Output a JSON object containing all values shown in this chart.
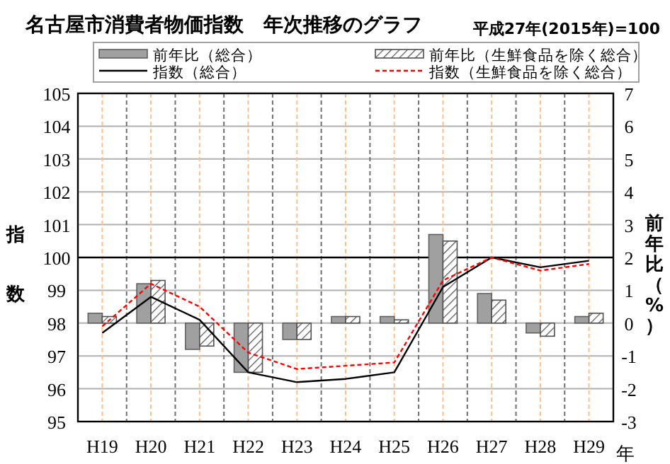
{
  "chart_data": {
    "type": "bar",
    "title": "名古屋市消費者物価指数　年次推移のグラフ",
    "subtitle": "平成27年(2015年)=100",
    "xlabel": "年",
    "ylabel": "指数",
    "y2label": "前年比（%）",
    "categories": [
      "H19",
      "H20",
      "H21",
      "H22",
      "H23",
      "H24",
      "H25",
      "H26",
      "H27",
      "H28",
      "H29"
    ],
    "series": [
      {
        "name": "前年比（総合）",
        "axis": "y2",
        "color": "#a0a0a0",
        "values": [
          0.3,
          1.2,
          -0.8,
          -1.5,
          -0.5,
          0.2,
          0.2,
          2.7,
          0.9,
          -0.3,
          0.2
        ]
      },
      {
        "name": "前年比（生鮮食品を除く総合）",
        "axis": "y2",
        "color": "#505050",
        "values": [
          0.2,
          1.3,
          -0.7,
          -1.5,
          -0.5,
          0.2,
          0.1,
          2.5,
          0.7,
          -0.4,
          0.3
        ]
      },
      {
        "name": "指数（総合）",
        "type": "line",
        "axis": "y",
        "color": "#000000",
        "line_style": "solid",
        "values": [
          97.7,
          98.8,
          98.1,
          96.5,
          96.2,
          96.3,
          96.5,
          99.1,
          100.0,
          99.7,
          99.9
        ]
      },
      {
        "name": "指数（生鮮食品を除く総合）",
        "type": "line",
        "axis": "y",
        "color": "#ff0000",
        "line_style": "dashed",
        "values": [
          97.9,
          99.2,
          98.5,
          97.1,
          96.6,
          96.7,
          96.8,
          99.3,
          100.0,
          99.6,
          99.8
        ]
      }
    ],
    "ylim": [
      95,
      105
    ],
    "yticks": [
      95,
      96,
      97,
      98,
      99,
      100,
      101,
      102,
      103,
      104,
      105
    ],
    "y2lim": [
      -3,
      7
    ],
    "y2ticks": [
      -3,
      -2,
      -1,
      0,
      1,
      2,
      3,
      4,
      5,
      6,
      7
    ],
    "ref_lines": [
      {
        "axis": "y",
        "value": 100,
        "color": "#000000"
      }
    ],
    "grid": true,
    "legend": "top",
    "marker": "none"
  }
}
